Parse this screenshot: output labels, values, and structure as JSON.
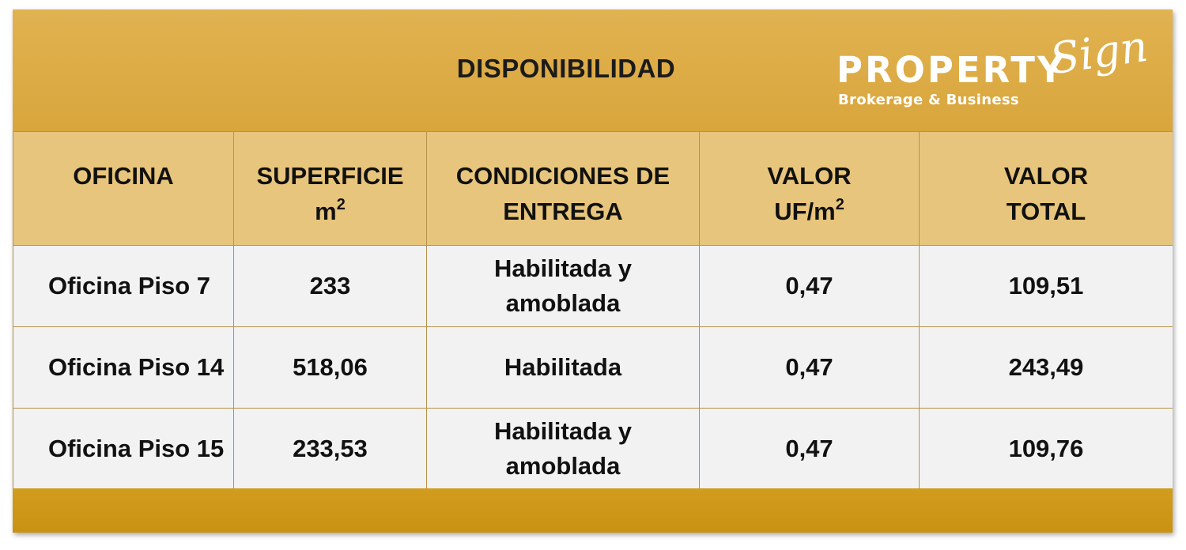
{
  "header": {
    "title": "DISPONIBILIDAD"
  },
  "logo": {
    "main": "PROPERTY",
    "script": "Sign",
    "tagline": "Brokerage & Business"
  },
  "table": {
    "columns": [
      {
        "line1": "OFICINA",
        "line2": ""
      },
      {
        "line1": "SUPERFICIE",
        "line2": "m",
        "line2_sup": "2"
      },
      {
        "line1": "CONDICIONES DE",
        "line2": "ENTREGA"
      },
      {
        "line1": "VALOR",
        "line2": "UF/m",
        "line2_sup": "2"
      },
      {
        "line1": "VALOR",
        "line2": "TOTAL"
      }
    ],
    "rows": [
      {
        "oficina": "Oficina Piso 7",
        "superficie": "233",
        "condiciones_line1": "Habilitada y",
        "condiciones_line2": "amoblada",
        "valor_uf_m2": "0,47",
        "valor_total": "109,51"
      },
      {
        "oficina": "Oficina Piso 14",
        "superficie": "518,06",
        "condiciones_line1": "Habilitada",
        "condiciones_line2": "",
        "valor_uf_m2": "0,47",
        "valor_total": "243,49"
      },
      {
        "oficina": "Oficina Piso 15",
        "superficie": "233,53",
        "condiciones_line1": "Habilitada y",
        "condiciones_line2": "amoblada",
        "valor_uf_m2": "0,47",
        "valor_total": "109,76"
      }
    ]
  },
  "colors": {
    "header_gold": "#dcab45",
    "column_header_gold": "#e8c57c",
    "footer_gold": "#cd9718",
    "row_background": "#f2f2f2",
    "cell_border": "#b7924a"
  }
}
